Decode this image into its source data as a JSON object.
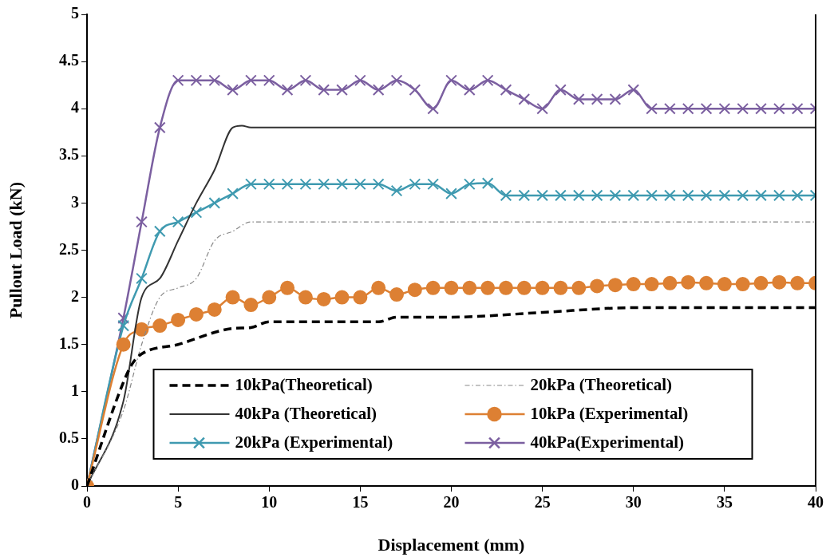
{
  "chart_data": {
    "type": "line",
    "xlabel": "Displacement (mm)",
    "ylabel": "Pullout Load (kN)",
    "xlim": [
      0,
      40
    ],
    "xticks": [
      0,
      5,
      10,
      15,
      20,
      25,
      30,
      35,
      40
    ],
    "ylim": [
      0,
      5
    ],
    "yticks": [
      0,
      0.5,
      1,
      1.5,
      2,
      2.5,
      3,
      3.5,
      4,
      4.5,
      5
    ],
    "grid": false,
    "legend": "bottom",
    "series": [
      {
        "name": "10kPa(Theoretical)",
        "color": "#000000",
        "line_style": "dashed",
        "marker": "none",
        "x": [
          0,
          2,
          2.5,
          3,
          5,
          8,
          9,
          10,
          16,
          17,
          20,
          25,
          30,
          40
        ],
        "values": [
          0,
          1.1,
          1.3,
          1.4,
          1.5,
          1.67,
          1.68,
          1.74,
          1.74,
          1.79,
          1.79,
          1.84,
          1.89,
          1.89
        ]
      },
      {
        "name": "20kPa (Theoretical)",
        "color": "#888888",
        "line_style": "dotted",
        "marker": "none",
        "x": [
          0,
          2,
          3,
          4,
          5,
          6,
          7,
          8,
          9,
          40
        ],
        "values": [
          0,
          0.8,
          1.5,
          2.0,
          2.1,
          2.2,
          2.6,
          2.7,
          2.8,
          2.8
        ]
      },
      {
        "name": "40kPa (Theoretical)",
        "color": "#333333",
        "line_style": "solid",
        "marker": "none",
        "x": [
          0,
          2,
          3,
          4,
          5,
          6,
          7,
          8,
          8.5,
          9,
          40
        ],
        "values": [
          0,
          0.9,
          2.0,
          2.2,
          2.6,
          3.0,
          3.35,
          3.8,
          3.82,
          3.8,
          3.8
        ]
      },
      {
        "name": "10kPa (Experimental)",
        "color": "#dd8033",
        "line_style": "solid",
        "marker": "circle",
        "x": [
          0,
          2,
          3,
          4,
          5,
          6,
          7,
          8,
          9,
          10,
          11,
          12,
          13,
          14,
          15,
          16,
          17,
          18,
          19,
          20,
          21,
          22,
          23,
          24,
          25,
          26,
          27,
          28,
          29,
          30,
          31,
          32,
          33,
          34,
          35,
          36,
          37,
          38,
          39,
          40
        ],
        "values": [
          0,
          1.5,
          1.66,
          1.7,
          1.76,
          1.82,
          1.87,
          2.0,
          1.92,
          2.0,
          2.1,
          2.0,
          1.98,
          2.0,
          2.0,
          2.1,
          2.03,
          2.08,
          2.1,
          2.1,
          2.1,
          2.1,
          2.1,
          2.1,
          2.1,
          2.1,
          2.1,
          2.12,
          2.13,
          2.14,
          2.14,
          2.15,
          2.16,
          2.15,
          2.14,
          2.14,
          2.15,
          2.16,
          2.15,
          2.15
        ]
      },
      {
        "name": "20kPa (Experimental)",
        "color": "#3f9ab0",
        "line_style": "solid",
        "marker": "cross",
        "x": [
          0,
          2,
          3,
          4,
          5,
          6,
          7,
          8,
          9,
          10,
          11,
          12,
          13,
          14,
          15,
          16,
          17,
          18,
          19,
          20,
          21,
          22,
          23,
          24,
          25,
          26,
          27,
          28,
          29,
          30,
          31,
          32,
          33,
          34,
          35,
          36,
          37,
          38,
          39,
          40
        ],
        "values": [
          0,
          1.7,
          2.2,
          2.7,
          2.8,
          2.9,
          3.0,
          3.1,
          3.2,
          3.2,
          3.2,
          3.2,
          3.2,
          3.2,
          3.2,
          3.2,
          3.13,
          3.2,
          3.2,
          3.1,
          3.2,
          3.21,
          3.08,
          3.08,
          3.08,
          3.08,
          3.08,
          3.08,
          3.08,
          3.08,
          3.08,
          3.08,
          3.08,
          3.08,
          3.08,
          3.08,
          3.08,
          3.08,
          3.08,
          3.08
        ]
      },
      {
        "name": "40kPa(Experimental)",
        "color": "#7b5fa0",
        "line_style": "solid",
        "marker": "cross",
        "x": [
          0,
          2,
          3,
          4,
          5,
          6,
          7,
          8,
          9,
          10,
          11,
          12,
          13,
          14,
          15,
          16,
          17,
          18,
          19,
          20,
          21,
          22,
          23,
          24,
          25,
          26,
          27,
          28,
          29,
          30,
          31,
          32,
          33,
          34,
          35,
          36,
          37,
          38,
          39,
          40
        ],
        "values": [
          0,
          1.78,
          2.8,
          3.8,
          4.3,
          4.3,
          4.3,
          4.2,
          4.3,
          4.3,
          4.2,
          4.3,
          4.2,
          4.2,
          4.3,
          4.2,
          4.3,
          4.2,
          4.0,
          4.3,
          4.2,
          4.3,
          4.2,
          4.1,
          4.0,
          4.2,
          4.1,
          4.1,
          4.1,
          4.2,
          4.0,
          4.0,
          4.0,
          4.0,
          4.0,
          4.0,
          4.0,
          4.0,
          4.0,
          4.0
        ]
      }
    ]
  }
}
